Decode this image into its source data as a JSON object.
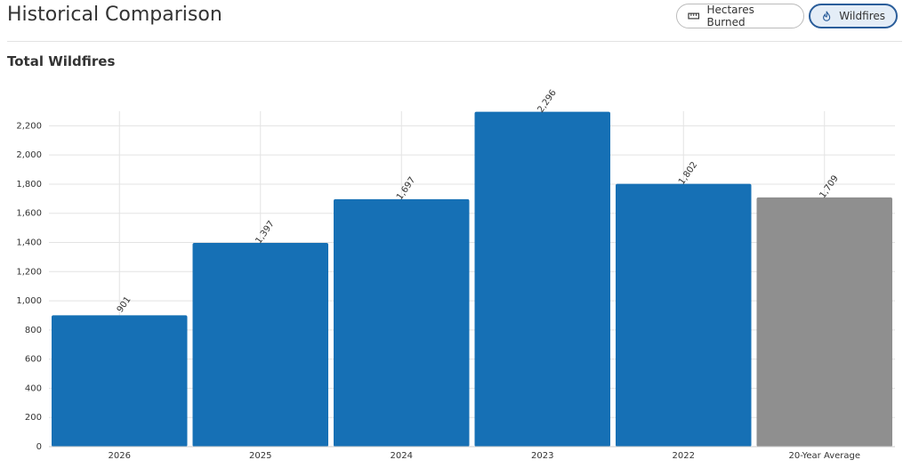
{
  "header": {
    "title": "Historical Comparison",
    "buttons": [
      "Hectares Burned",
      "Wildfires"
    ],
    "active_button": 1
  },
  "chart_data": {
    "type": "bar",
    "title": "Total Wildfires",
    "categories": [
      "2026",
      "2025",
      "2024",
      "2023",
      "2022",
      "20-Year Average"
    ],
    "values": [
      901,
      1397,
      1697,
      2296,
      1802,
      1709
    ],
    "value_labels": [
      "901",
      "1,397",
      "1,697",
      "2,296",
      "1,802",
      "1,709"
    ],
    "colors": [
      "#1670b5",
      "#1670b5",
      "#1670b5",
      "#1670b5",
      "#1670b5",
      "#8f8f8f"
    ],
    "ylim": [
      0,
      2300
    ],
    "yticks": [
      0,
      200,
      400,
      600,
      800,
      {
        "value": 1000,
        "label": "1,000"
      },
      {
        "value": 1200,
        "label": "1,200"
      },
      {
        "value": 1400,
        "label": "1,400"
      },
      {
        "value": 1600,
        "label": "1,600"
      },
      {
        "value": 1800,
        "label": "1,800"
      },
      {
        "value": 2000,
        "label": "2,000"
      },
      {
        "value": 2200,
        "label": "2,200"
      }
    ],
    "grid": true
  }
}
